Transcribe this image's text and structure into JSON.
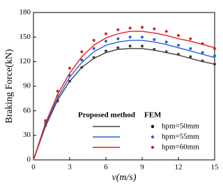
{
  "chart_data": {
    "type": "line",
    "x_label": "v(m/s)",
    "y_label": "Braking Force(kN)",
    "legend_titles": [
      "Proposed method",
      "FEM"
    ],
    "x": [
      0,
      1,
      2,
      3,
      4,
      5,
      6,
      7,
      8,
      9,
      10,
      11,
      12,
      13,
      14,
      15
    ],
    "series": [
      {
        "name": "hpm=50mm",
        "color": "#404040",
        "values": [
          0,
          41,
          73,
          96,
          113,
          124,
          131,
          135,
          136,
          136,
          134,
          131,
          128,
          124,
          120,
          117
        ],
        "fem": [
          null,
          42,
          72,
          96,
          113,
          125,
          133,
          137,
          139,
          139,
          135,
          132,
          129,
          126,
          121,
          117
        ]
      },
      {
        "name": "hpm=55mm",
        "color": "#2b5fd9",
        "values": [
          0,
          43,
          76,
          101,
          119,
          132,
          140,
          144,
          146,
          146,
          144,
          141,
          137,
          133,
          129,
          125
        ],
        "fem": [
          null,
          45,
          78,
          103,
          122,
          136,
          145,
          148,
          150,
          150,
          147,
          144,
          140,
          136,
          131,
          127
        ]
      },
      {
        "name": "hpm=60mm",
        "color": "#e02020",
        "values": [
          0,
          45,
          80,
          106,
          126,
          140,
          149,
          154,
          157,
          157,
          155,
          152,
          148,
          145,
          141,
          137
        ],
        "fem": [
          null,
          48,
          84,
          112,
          132,
          146,
          154,
          159,
          161,
          162,
          160,
          157,
          152,
          148,
          142,
          136
        ]
      }
    ],
    "fem_color": "#000000",
    "xlim": [
      0,
      15
    ],
    "xticks": [
      0,
      3,
      6,
      9,
      12,
      15
    ],
    "ylim": [
      0,
      180
    ],
    "yticks": [
      0,
      30,
      60,
      90,
      120,
      150,
      180
    ]
  }
}
